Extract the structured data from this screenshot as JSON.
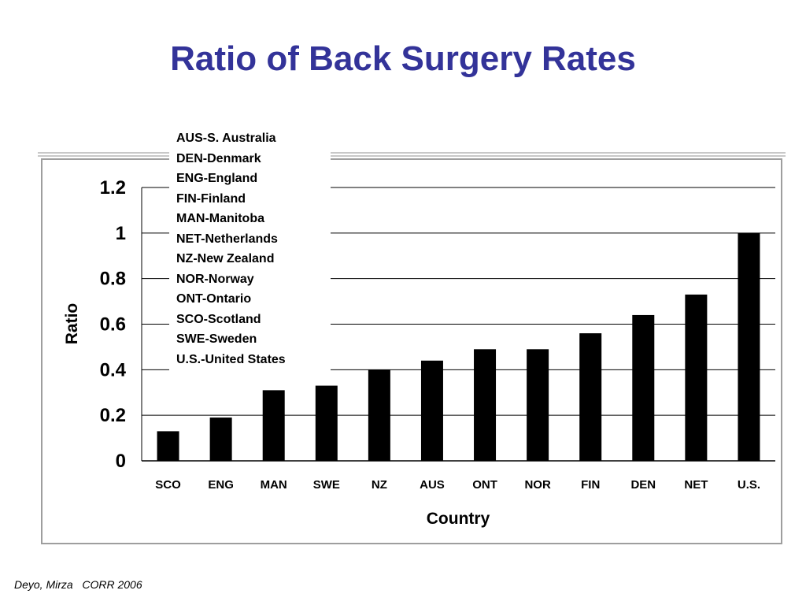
{
  "slide": {
    "title": "Ratio of Back Surgery Rates",
    "citation": "Deyo, Mirza   CORR 2006"
  },
  "colors": {
    "title": "#333399",
    "bars": "#000000",
    "frame": "#9e9e9e"
  },
  "chart_data": {
    "type": "bar",
    "categories": [
      "SCO",
      "ENG",
      "MAN",
      "SWE",
      "NZ",
      "AUS",
      "ONT",
      "NOR",
      "FIN",
      "DEN",
      "NET",
      "U.S."
    ],
    "values": [
      0.13,
      0.19,
      0.31,
      0.33,
      0.4,
      0.44,
      0.49,
      0.49,
      0.56,
      0.64,
      0.73,
      1.0
    ],
    "xlabel": "Country",
    "ylabel": "Ratio",
    "ylim": [
      0,
      1.2
    ],
    "yticks": [
      "0",
      "0.2",
      "0.4",
      "0.6",
      "0.8",
      "1",
      "1.2"
    ],
    "grid": true,
    "legend": {
      "placement": "top-left",
      "entries": [
        "AUS-S. Australia",
        "DEN-Denmark",
        "ENG-England",
        "FIN-Finland",
        "MAN-Manitoba",
        "NET-Netherlands",
        "NZ-New Zealand",
        "NOR-Norway",
        "ONT-Ontario",
        "SCO-Scotland",
        "SWE-Sweden",
        "U.S.-United States"
      ]
    }
  }
}
